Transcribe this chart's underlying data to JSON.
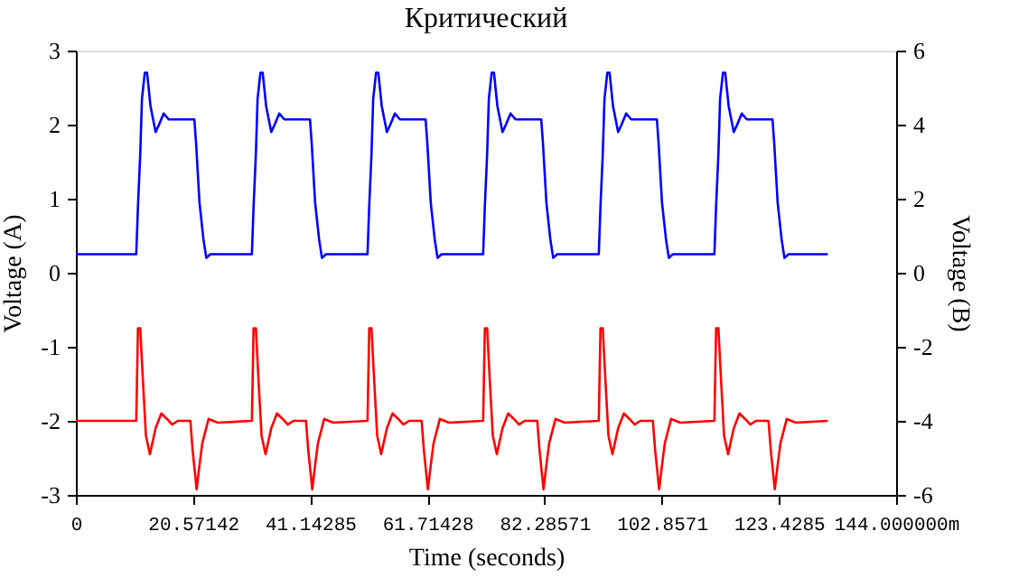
{
  "chart_data": {
    "type": "line",
    "title": "Критический",
    "xlabel": "Time (seconds)",
    "ylabel": "Voltage (A)",
    "y2label": "Voltage (B)",
    "xlim": [
      0,
      144
    ],
    "xticks": [
      0,
      20.57142,
      41.14285,
      61.71428,
      82.28571,
      102.8571,
      123.4285,
      {
        "value": 144,
        "label": "144.000000m"
      }
    ],
    "ylim": [
      -3,
      3
    ],
    "yticks": [
      -3,
      -2,
      -1,
      0,
      1,
      2,
      3
    ],
    "y2lim": [
      -6,
      6
    ],
    "y2ticks": [
      -6,
      -4,
      -2,
      0,
      2,
      4,
      6
    ],
    "grid": false,
    "series": [
      {
        "color": "#0000ff",
        "x": [
          0,
          10.6,
          10.9,
          11.3,
          11.6,
          12.1,
          12.5,
          13.1,
          14.0,
          14.6,
          15.4,
          16.3,
          20.8,
          21.1,
          21.7,
          22.4,
          22.9,
          23.6,
          30.9,
          31.2,
          31.6,
          31.9,
          32.4,
          32.8,
          33.4,
          34.3,
          34.9,
          35.7,
          36.6,
          41.1,
          41.4,
          42.0,
          42.7,
          43.2,
          43.9,
          51.2,
          51.5,
          51.9,
          52.2,
          52.7,
          53.1,
          53.7,
          54.6,
          55.2,
          56.0,
          56.9,
          61.4,
          61.7,
          62.3,
          63.0,
          63.5,
          64.2,
          71.5,
          71.8,
          72.2,
          72.5,
          73.0,
          73.4,
          74.0,
          74.9,
          75.5,
          76.3,
          77.2,
          81.7,
          82.0,
          82.6,
          83.3,
          83.8,
          84.5,
          91.8,
          92.1,
          92.5,
          92.8,
          93.3,
          93.7,
          94.3,
          95.2,
          95.8,
          96.6,
          97.5,
          102.0,
          102.3,
          102.9,
          103.6,
          104.1,
          104.8,
          112.1,
          112.4,
          112.8,
          113.1,
          113.6,
          114.0,
          114.6,
          115.5,
          116.1,
          116.9,
          117.8,
          122.3,
          122.6,
          123.2,
          123.9,
          124.4,
          125.1,
          132
        ],
        "values": [
          0.25,
          0.25,
          0.9,
          1.6,
          2.35,
          2.7,
          2.7,
          2.25,
          1.9,
          2.0,
          2.15,
          2.07,
          2.07,
          1.75,
          0.95,
          0.45,
          0.2,
          0.25,
          0.25,
          0.9,
          1.6,
          2.35,
          2.7,
          2.7,
          2.25,
          1.9,
          2.0,
          2.15,
          2.07,
          2.07,
          1.75,
          0.95,
          0.45,
          0.2,
          0.25,
          0.25,
          0.9,
          1.6,
          2.35,
          2.7,
          2.7,
          2.25,
          1.9,
          2.0,
          2.15,
          2.07,
          2.07,
          1.75,
          0.95,
          0.45,
          0.2,
          0.25,
          0.25,
          0.9,
          1.6,
          2.35,
          2.7,
          2.7,
          2.25,
          1.9,
          2.0,
          2.15,
          2.07,
          2.07,
          1.75,
          0.95,
          0.45,
          0.2,
          0.25,
          0.25,
          0.9,
          1.6,
          2.35,
          2.7,
          2.7,
          2.25,
          1.9,
          2.0,
          2.15,
          2.07,
          2.07,
          1.75,
          0.95,
          0.45,
          0.2,
          0.25,
          0.25,
          0.9,
          1.6,
          2.35,
          2.7,
          2.7,
          2.25,
          1.9,
          2.0,
          2.15,
          2.07,
          2.07,
          1.75,
          0.95,
          0.45,
          0.2,
          0.25,
          0.25
        ]
      },
      {
        "color": "#ff0000",
        "axis": "y2",
        "x": [
          0,
          10.6,
          10.9,
          11.3,
          11.8,
          12.3,
          13.0,
          14.0,
          15.0,
          16.0,
          16.9,
          17.9,
          20.1,
          20.5,
          21.2,
          21.7,
          22.2,
          23.3,
          24.9,
          30.9,
          31.2,
          31.6,
          32.1,
          32.6,
          33.3,
          34.3,
          35.3,
          36.3,
          37.2,
          38.2,
          40.4,
          40.8,
          41.5,
          42.0,
          42.5,
          43.6,
          45.2,
          51.2,
          51.5,
          51.9,
          52.4,
          52.9,
          53.6,
          54.6,
          55.6,
          56.6,
          57.5,
          58.5,
          60.7,
          61.1,
          61.8,
          62.3,
          62.8,
          63.9,
          65.5,
          71.5,
          71.8,
          72.2,
          72.7,
          73.2,
          73.9,
          74.9,
          75.9,
          76.9,
          77.8,
          78.8,
          81.0,
          81.4,
          82.1,
          82.6,
          83.1,
          84.2,
          85.8,
          91.8,
          92.1,
          92.5,
          93.0,
          93.5,
          94.2,
          95.2,
          96.2,
          97.2,
          98.1,
          99.1,
          101.3,
          101.7,
          102.4,
          102.9,
          103.4,
          104.5,
          106.1,
          112.1,
          112.4,
          112.8,
          113.3,
          113.8,
          114.5,
          115.5,
          116.5,
          117.5,
          118.4,
          119.4,
          121.6,
          122.0,
          122.7,
          123.2,
          123.7,
          124.8,
          126.4,
          132
        ],
        "values": [
          -4.0,
          -4.0,
          -1.5,
          -1.5,
          -3.0,
          -4.4,
          -4.9,
          -4.2,
          -3.8,
          -3.95,
          -4.1,
          -4.0,
          -4.0,
          -4.8,
          -5.85,
          -5.2,
          -4.6,
          -3.95,
          -4.05,
          -4.0,
          -1.5,
          -1.5,
          -3.0,
          -4.4,
          -4.9,
          -4.2,
          -3.8,
          -3.95,
          -4.1,
          -4.0,
          -4.0,
          -4.8,
          -5.85,
          -5.2,
          -4.6,
          -3.95,
          -4.05,
          -4.0,
          -1.5,
          -1.5,
          -3.0,
          -4.4,
          -4.9,
          -4.2,
          -3.8,
          -3.95,
          -4.1,
          -4.0,
          -4.0,
          -4.8,
          -5.85,
          -5.2,
          -4.6,
          -3.95,
          -4.05,
          -4.0,
          -1.5,
          -1.5,
          -3.0,
          -4.4,
          -4.9,
          -4.2,
          -3.8,
          -3.95,
          -4.1,
          -4.0,
          -4.0,
          -4.8,
          -5.85,
          -5.2,
          -4.6,
          -3.95,
          -4.05,
          -4.0,
          -1.5,
          -1.5,
          -3.0,
          -4.4,
          -4.9,
          -4.2,
          -3.8,
          -3.95,
          -4.1,
          -4.0,
          -4.0,
          -4.8,
          -5.85,
          -5.2,
          -4.6,
          -3.95,
          -4.05,
          -4.0,
          -1.5,
          -1.5,
          -3.0,
          -4.4,
          -4.9,
          -4.2,
          -3.8,
          -3.95,
          -4.1,
          -4.0,
          -4.0,
          -4.8,
          -5.85,
          -5.2,
          -4.6,
          -3.95,
          -4.05,
          -4.0
        ]
      }
    ]
  }
}
